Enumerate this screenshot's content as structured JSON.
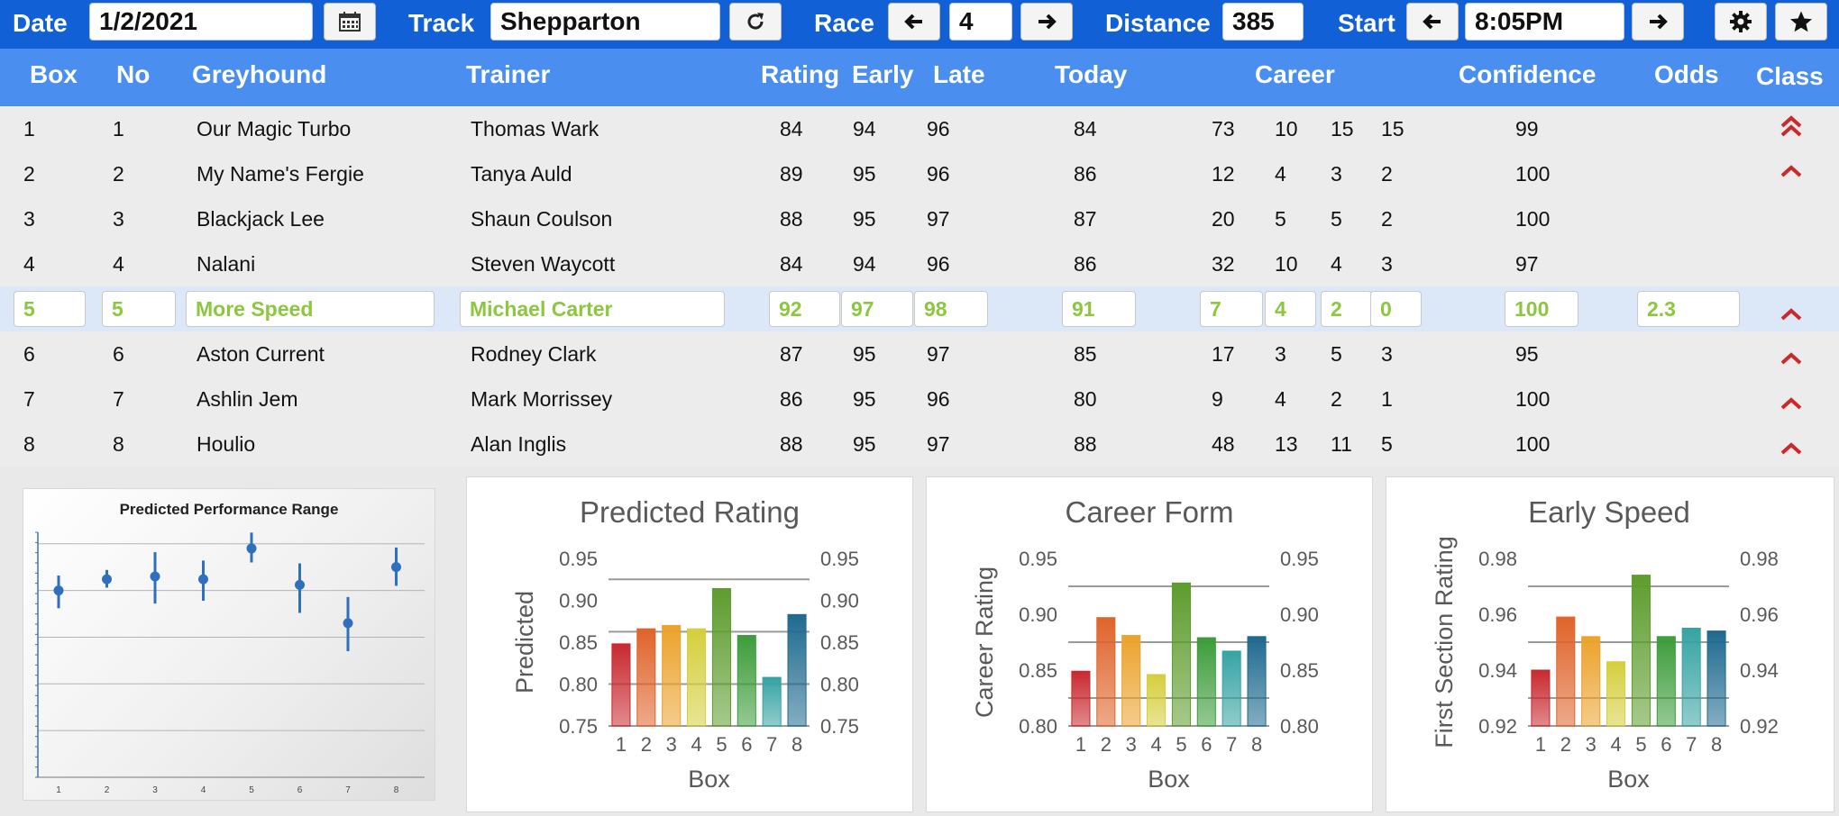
{
  "toolbar": {
    "date_label": "Date",
    "date_value": "1/2/2021",
    "track_label": "Track",
    "track_value": "Shepparton",
    "race_label": "Race",
    "race_value": "4",
    "distance_label": "Distance",
    "distance_value": "385",
    "start_label": "Start",
    "start_value": "8:05PM"
  },
  "columns": {
    "box": "Box",
    "no": "No",
    "greyhound": "Greyhound",
    "trainer": "Trainer",
    "rating": "Rating",
    "early": "Early",
    "late": "Late",
    "today": "Today",
    "career": "Career",
    "confidence": "Confidence",
    "odds": "Odds",
    "class": "Class"
  },
  "runners": [
    {
      "box": "1",
      "no": "1",
      "greyhound": "Our Magic Turbo",
      "trainer": "Thomas Wark",
      "rating": "84",
      "early": "94",
      "late": "96",
      "today": "84",
      "career": [
        "73",
        "10",
        "15",
        "15"
      ],
      "confidence": "99",
      "odds": "",
      "class_icon": "double-chevron-up-icon"
    },
    {
      "box": "2",
      "no": "2",
      "greyhound": "My Name's Fergie",
      "trainer": "Tanya Auld",
      "rating": "89",
      "early": "95",
      "late": "96",
      "today": "86",
      "career": [
        "12",
        "4",
        "3",
        "2"
      ],
      "confidence": "100",
      "odds": "",
      "class_icon": "chevron-up-icon"
    },
    {
      "box": "3",
      "no": "3",
      "greyhound": "Blackjack Lee",
      "trainer": "Shaun Coulson",
      "rating": "88",
      "early": "95",
      "late": "97",
      "today": "87",
      "career": [
        "20",
        "5",
        "5",
        "2"
      ],
      "confidence": "100",
      "odds": "",
      "class_icon": ""
    },
    {
      "box": "4",
      "no": "4",
      "greyhound": "Nalani",
      "trainer": "Steven Waycott",
      "rating": "84",
      "early": "94",
      "late": "96",
      "today": "86",
      "career": [
        "32",
        "10",
        "4",
        "3"
      ],
      "confidence": "97",
      "odds": "",
      "class_icon": ""
    },
    {
      "box": "5",
      "no": "5",
      "greyhound": "More Speed",
      "trainer": "Michael Carter",
      "rating": "92",
      "early": "97",
      "late": "98",
      "today": "91",
      "career": [
        "7",
        "4",
        "2",
        "0"
      ],
      "confidence": "100",
      "odds": "2.3",
      "class_icon": "chevron-up-icon",
      "selected": true
    },
    {
      "box": "6",
      "no": "6",
      "greyhound": "Aston Current",
      "trainer": "Rodney Clark",
      "rating": "87",
      "early": "95",
      "late": "97",
      "today": "85",
      "career": [
        "17",
        "3",
        "5",
        "3"
      ],
      "confidence": "95",
      "odds": "",
      "class_icon": "chevron-up-icon"
    },
    {
      "box": "7",
      "no": "7",
      "greyhound": "Ashlin Jem",
      "trainer": "Mark Morrissey",
      "rating": "86",
      "early": "95",
      "late": "96",
      "today": "80",
      "career": [
        "9",
        "4",
        "2",
        "1"
      ],
      "confidence": "100",
      "odds": "",
      "class_icon": "chevron-up-icon"
    },
    {
      "box": "8",
      "no": "8",
      "greyhound": "Houlio",
      "trainer": "Alan Inglis",
      "rating": "88",
      "early": "95",
      "late": "97",
      "today": "88",
      "career": [
        "48",
        "13",
        "11",
        "5"
      ],
      "confidence": "100",
      "odds": "",
      "class_icon": "chevron-up-icon"
    }
  ],
  "colors": {
    "toolbar": "#1160d6",
    "header": "#4a8ff0",
    "selected_text": "#8dc63f",
    "class_icon": "#cc2a2a",
    "bars": [
      "#c8292f",
      "#e0632a",
      "#eca22c",
      "#d5cf3c",
      "#5d9c2d",
      "#3c9c3a",
      "#36a3a3",
      "#1f6a8f"
    ]
  },
  "chart_data": [
    {
      "type": "scatter",
      "title": "Predicted Performance Range",
      "categories": [
        "1",
        "2",
        "3",
        "4",
        "5",
        "6",
        "7",
        "8"
      ],
      "values": [
        0.85,
        0.862,
        0.865,
        0.862,
        0.895,
        0.856,
        0.815,
        0.875
      ],
      "low": [
        0.831,
        0.853,
        0.836,
        0.839,
        0.88,
        0.826,
        0.785,
        0.855
      ],
      "high": [
        0.866,
        0.872,
        0.891,
        0.882,
        0.912,
        0.879,
        0.843,
        0.896
      ],
      "ylim": [
        0.65,
        0.92
      ],
      "grid": true
    },
    {
      "type": "bar",
      "title": "Predicted Rating",
      "xlabel": "Box",
      "ylabel": "Predicted",
      "categories": [
        "1",
        "2",
        "3",
        "4",
        "5",
        "6",
        "7",
        "8"
      ],
      "values": [
        0.848,
        0.866,
        0.87,
        0.866,
        0.914,
        0.858,
        0.808,
        0.883
      ],
      "ylim": [
        0.75,
        0.95
      ],
      "yticks": [
        "0.75",
        "0.80",
        "0.85",
        "0.90",
        "0.95"
      ],
      "gridlines": [
        0.8,
        0.8625,
        0.925
      ]
    },
    {
      "type": "bar",
      "title": "Career Form",
      "xlabel": "Box",
      "ylabel": "Career Rating",
      "categories": [
        "1",
        "2",
        "3",
        "4",
        "5",
        "6",
        "7",
        "8"
      ],
      "values": [
        0.849,
        0.897,
        0.881,
        0.846,
        0.928,
        0.879,
        0.867,
        0.88
      ],
      "ylim": [
        0.8,
        0.95
      ],
      "yticks": [
        "0.80",
        "0.85",
        "0.90",
        "0.95"
      ],
      "gridlines": [
        0.825,
        0.875,
        0.925
      ]
    },
    {
      "type": "bar",
      "title": "Early Speed",
      "xlabel": "Box",
      "ylabel": "First Section Rating",
      "categories": [
        "1",
        "2",
        "3",
        "4",
        "5",
        "6",
        "7",
        "8"
      ],
      "values": [
        0.94,
        0.959,
        0.952,
        0.943,
        0.974,
        0.952,
        0.955,
        0.954
      ],
      "ylim": [
        0.92,
        0.98
      ],
      "yticks": [
        "0.92",
        "0.94",
        "0.96",
        "0.98"
      ],
      "gridlines": [
        0.93,
        0.95,
        0.97
      ]
    }
  ]
}
